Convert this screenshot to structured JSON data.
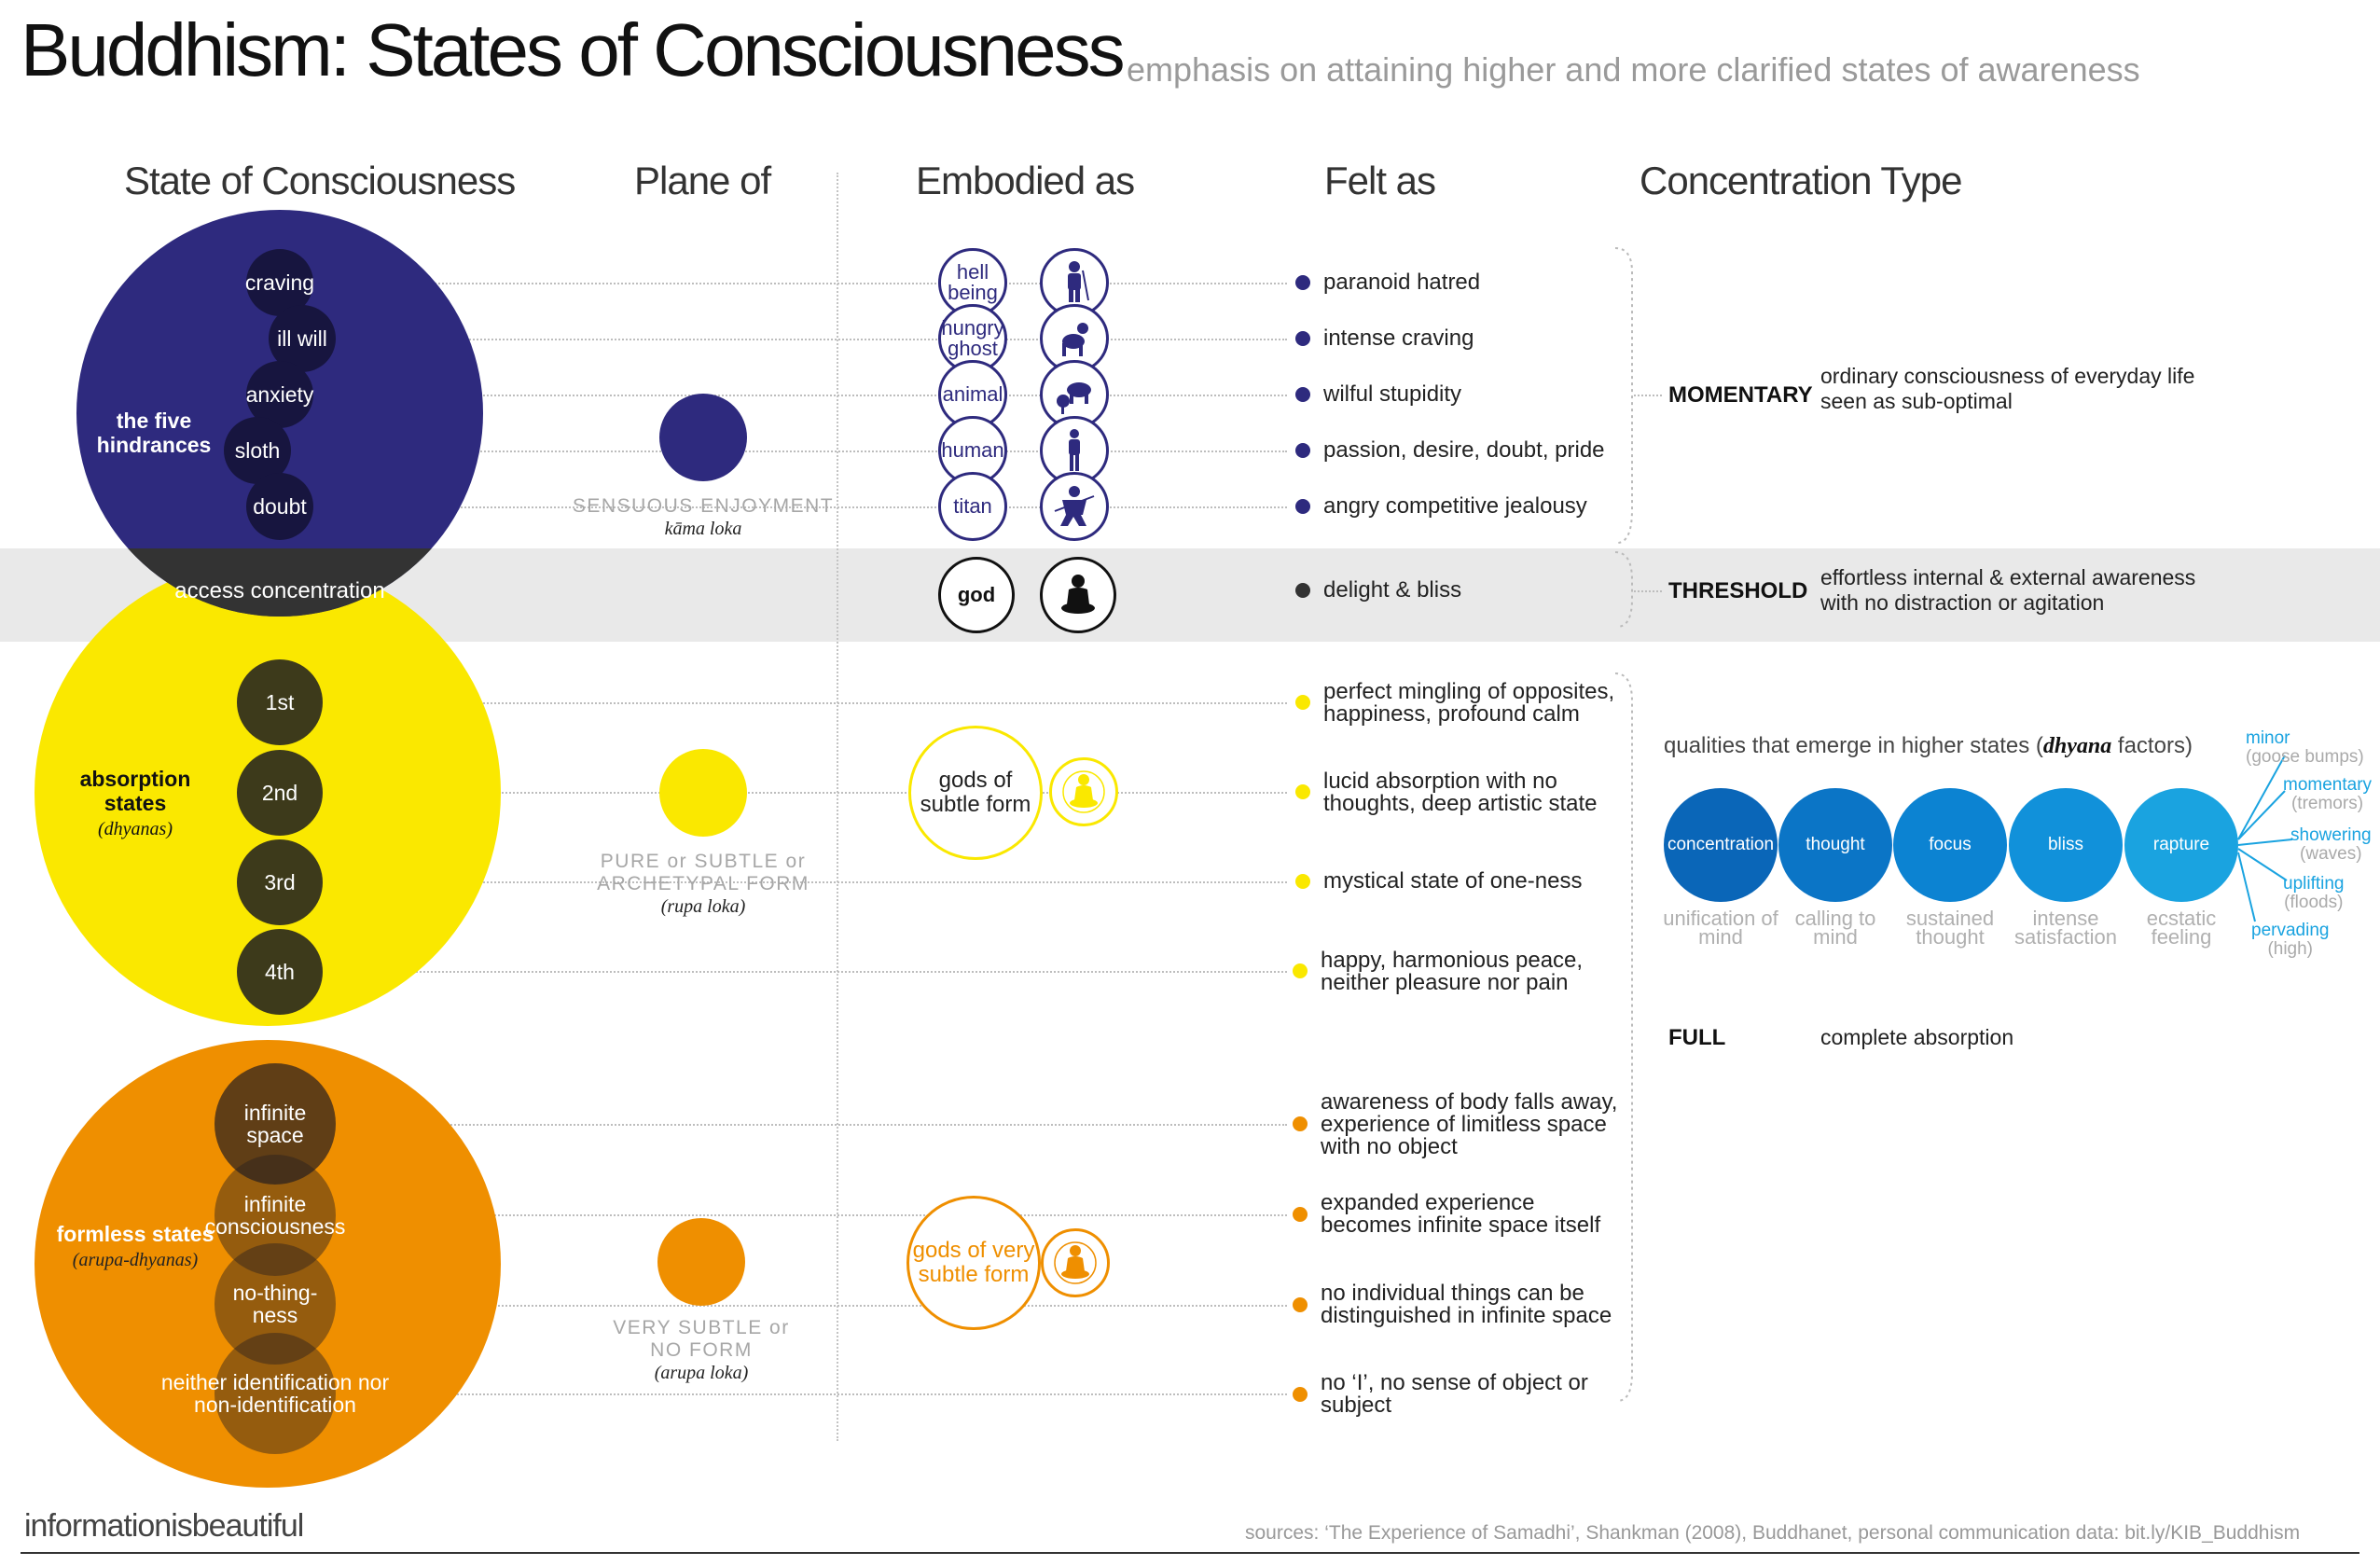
{
  "title": "Buddhism: States of Consciousness",
  "subtitle": "emphasis on attaining higher and more clarified states of awareness",
  "columns": [
    "State of Consciousness",
    "Plane of",
    "Embodied as",
    "Felt as",
    "Concentration Type"
  ],
  "colors": {
    "hindrance": "#2e2a7e",
    "absorption": "#fae800",
    "formless": "#ef8f00",
    "access": "#333333",
    "factor_blue": "#0a6fc2",
    "rapture_blue": "#1aa3e0"
  },
  "hindrances": {
    "label": "the five hindrances",
    "states": [
      "craving",
      "ill will",
      "anxiety",
      "sloth",
      "doubt"
    ],
    "plane": "SENSUOUS ENJOYMENT",
    "plane_sub": "kāma loka",
    "realms": [
      "hell being",
      "hungry ghost",
      "animal",
      "human",
      "titan"
    ],
    "realm_icons": [
      "hell-being-figure-icon",
      "hungry-ghost-figure-icon",
      "animal-figure-icon",
      "human-figure-icon",
      "titan-figure-icon"
    ],
    "felt": [
      "paranoid hatred",
      "intense craving",
      "wilful stupidity",
      "passion, desire, doubt, pride",
      "angry competitive jealousy"
    ]
  },
  "access": {
    "label": "access concentration",
    "realm": "god",
    "realm_icon": "meditating-buddha-icon",
    "felt": "delight & bliss"
  },
  "absorption": {
    "label": "absorption states",
    "label_sub": "(dhyanas)",
    "states": [
      "1st",
      "2nd",
      "3rd",
      "4th"
    ],
    "plane": "PURE or SUBTLE or ARCHETYPAL FORM",
    "plane_sub": "(rupa loka)",
    "realm": "gods of subtle form",
    "realm_icon": "meditating-buddha-icon",
    "felt": [
      "perfect mingling of opposites, happiness, profound calm",
      "lucid absorption with no thoughts, deep artistic state",
      "mystical state of one-ness",
      "happy, harmonious peace, neither pleasure nor pain"
    ]
  },
  "formless": {
    "label": "formless states",
    "label_sub": "(arupa-dhyanas)",
    "states": [
      "infinite space",
      "infinite consciousness",
      "no-thing-ness",
      "neither identification nor non-identification"
    ],
    "plane": "VERY SUBTLE or NO FORM",
    "plane_sub": "(arupa loka)",
    "realm": "gods of very subtle form",
    "realm_icon": "meditating-buddha-icon",
    "felt": [
      "awareness of body falls away, experience of limitless space with no object",
      "expanded experience becomes infinite space itself",
      "no individual things can be distinguished in infinite space",
      "no ‘I’, no sense of object or subject"
    ]
  },
  "concentration": [
    {
      "type": "MOMENTARY",
      "desc": "ordinary consciousness of everyday life seen as sub-optimal"
    },
    {
      "type": "THRESHOLD",
      "desc": "effortless internal & external awareness with no distraction or agitation"
    },
    {
      "type": "FULL",
      "desc": "complete absorption"
    }
  ],
  "qualities": {
    "heading": "qualities that emerge in higher states (",
    "heading_em": "dhyana",
    "heading_tail": " factors)",
    "factors": [
      {
        "name": "concentration",
        "sub": "unification of mind",
        "color": "#0a66b8"
      },
      {
        "name": "thought",
        "sub": "calling to mind",
        "color": "#0b75c6"
      },
      {
        "name": "focus",
        "sub": "sustained thought",
        "color": "#0c83d2"
      },
      {
        "name": "bliss",
        "sub": "intense satisfaction",
        "color": "#1191da"
      },
      {
        "name": "rapture",
        "sub": "ecstatic feeling",
        "color": "#1aa3e0"
      }
    ],
    "rapture_types": [
      {
        "name": "minor",
        "sub": "(goose bumps)"
      },
      {
        "name": "momentary",
        "sub": "(tremors)"
      },
      {
        "name": "showering",
        "sub": "(waves)"
      },
      {
        "name": "uplifting",
        "sub": "(floods)"
      },
      {
        "name": "pervading",
        "sub": "(high)"
      }
    ]
  },
  "brand": "informationisbeautiful",
  "sources": "sources: ‘The Experience of Samadhi’, Shankman (2008), Buddhanet, personal communication data: bit.ly/KIB_Buddhism"
}
